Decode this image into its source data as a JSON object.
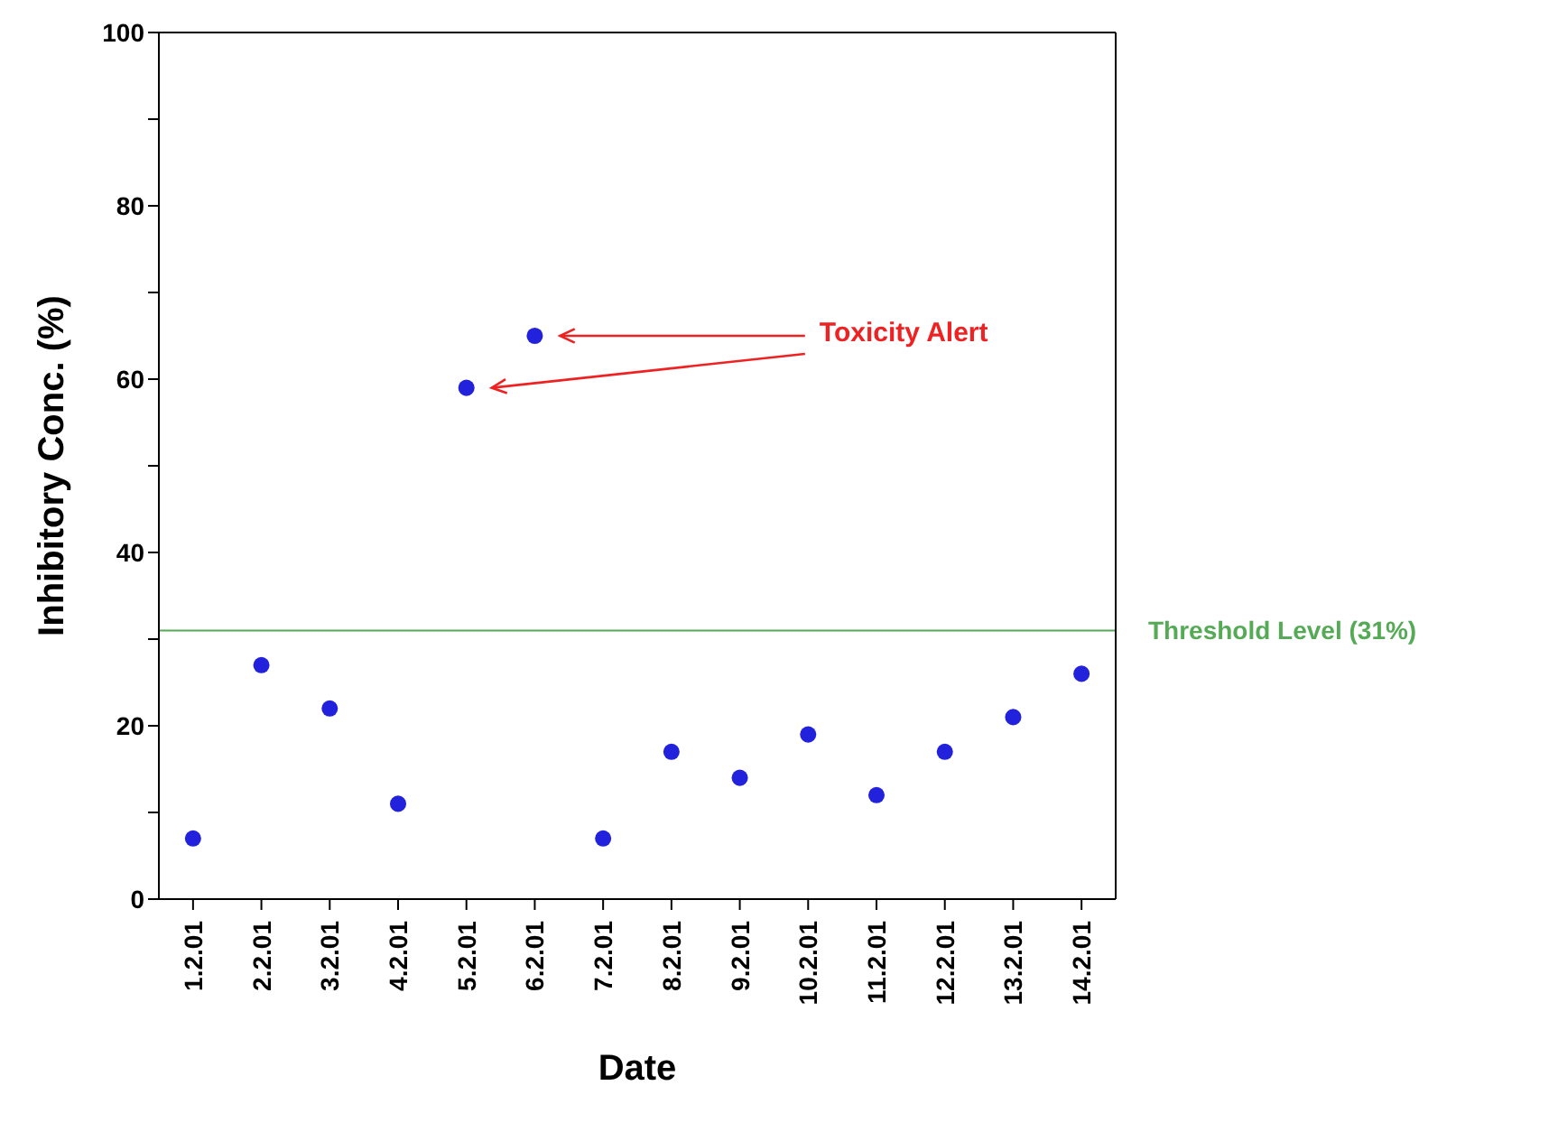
{
  "chart_data": {
    "type": "scatter",
    "xlabel": "Date",
    "ylabel": "Inhibitory Conc. (%)",
    "categories": [
      "1.2.01",
      "2.2.01",
      "3.2.01",
      "4.2.01",
      "5.2.01",
      "6.2.01",
      "7.2.01",
      "8.2.01",
      "9.2.01",
      "10.2.01",
      "11.2.01",
      "12.2.01",
      "13.2.01",
      "14.2.01"
    ],
    "series": [
      {
        "color": "#2222dd",
        "values": [
          7,
          27,
          22,
          11,
          59,
          65,
          7,
          17,
          14,
          19,
          12,
          17,
          21,
          26
        ]
      }
    ],
    "ylim": [
      0,
      100
    ],
    "yticks": [
      0,
      {
        "value": 10,
        "label": null
      },
      20,
      {
        "value": 30,
        "label": null
      },
      40,
      {
        "value": 50,
        "label": null
      },
      60,
      {
        "value": 70,
        "label": null
      },
      80,
      {
        "value": 90,
        "label": null
      },
      100
    ],
    "ref_lines": [
      {
        "axis": "y",
        "value": 31,
        "label": "Threshold Level (31%)",
        "color": "#55aa55"
      }
    ],
    "annotations": [
      "Toxicity Alert"
    ],
    "marker": "circle"
  }
}
